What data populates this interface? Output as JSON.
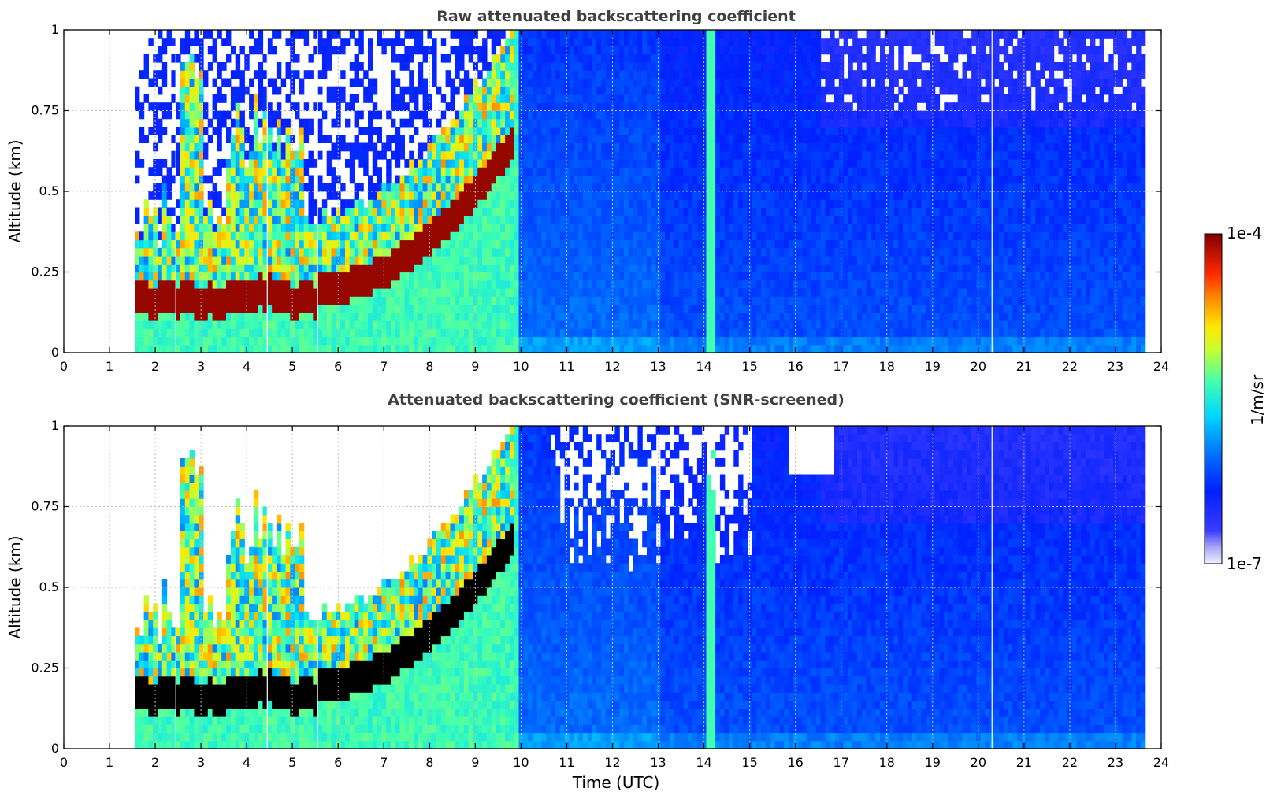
{
  "chart_data": [
    {
      "type": "heatmap",
      "title": "Raw attenuated backscattering coefficient",
      "xlabel": "",
      "ylabel": "Altitude (km)",
      "xlim": [
        0,
        24
      ],
      "ylim": [
        0,
        1
      ],
      "x_ticks": [
        "0",
        "1",
        "2",
        "3",
        "4",
        "5",
        "6",
        "7",
        "8",
        "9",
        "10",
        "11",
        "12",
        "13",
        "14",
        "15",
        "16",
        "17",
        "18",
        "19",
        "20",
        "21",
        "22",
        "23",
        "24"
      ],
      "y_ticks": [
        "0",
        "0.25",
        "0.5",
        "0.75",
        "1"
      ],
      "y_tick_values": [
        0,
        0.25,
        0.5,
        0.75,
        1
      ],
      "grid": true,
      "data_start_hour": 1.55,
      "data_end_hour": 23.7,
      "screened": false
    },
    {
      "type": "heatmap",
      "title": "Attenuated backscattering coefficient (SNR-screened)",
      "xlabel": "Time (UTC)",
      "ylabel": "Altitude (km)",
      "xlim": [
        0,
        24
      ],
      "ylim": [
        0,
        1
      ],
      "x_ticks": [
        "0",
        "1",
        "2",
        "3",
        "4",
        "5",
        "6",
        "7",
        "8",
        "9",
        "10",
        "11",
        "12",
        "13",
        "14",
        "15",
        "16",
        "17",
        "18",
        "19",
        "20",
        "21",
        "22",
        "23",
        "24"
      ],
      "y_ticks": [
        "0",
        "0.25",
        "0.5",
        "0.75",
        "1"
      ],
      "y_tick_values": [
        0,
        0.25,
        0.5,
        0.75,
        1
      ],
      "grid": true,
      "data_start_hour": 1.55,
      "data_end_hour": 23.7,
      "screened": true
    }
  ],
  "colorbar": {
    "label": "1/m/sr",
    "max_label": "1e-4",
    "min_label": "1e-7",
    "scale": "log",
    "range": [
      1e-07,
      0.0001
    ],
    "colormap": "jet"
  }
}
